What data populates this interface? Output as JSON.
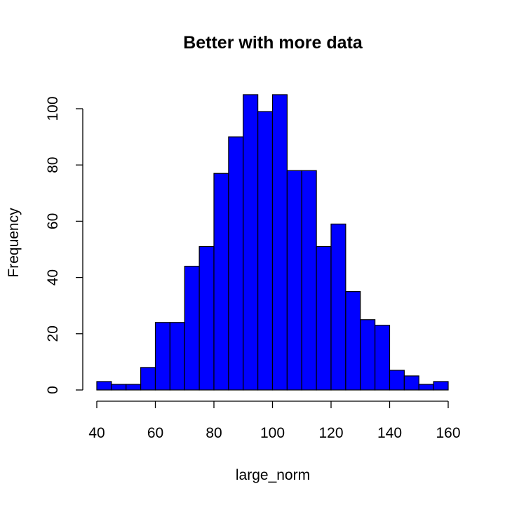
{
  "chart_data": {
    "type": "bar",
    "title": "Better with more data",
    "xlabel": "large_norm",
    "ylabel": "Frequency",
    "bin_width": 5,
    "bins_start": [
      40,
      45,
      50,
      55,
      60,
      65,
      70,
      75,
      80,
      85,
      90,
      95,
      100,
      105,
      110,
      115,
      120,
      125,
      130,
      135,
      140,
      145,
      150,
      155
    ],
    "values": [
      3,
      2,
      2,
      8,
      24,
      24,
      44,
      51,
      77,
      90,
      105,
      99,
      105,
      78,
      78,
      51,
      59,
      35,
      25,
      23,
      7,
      5,
      2,
      3
    ],
    "xlim": [
      40,
      160
    ],
    "ylim": [
      0,
      105
    ],
    "x_ticks": [
      40,
      60,
      80,
      100,
      120,
      140,
      160
    ],
    "y_ticks": [
      0,
      20,
      40,
      60,
      80,
      100
    ],
    "bar_color": "#0000ff",
    "grid": false
  }
}
